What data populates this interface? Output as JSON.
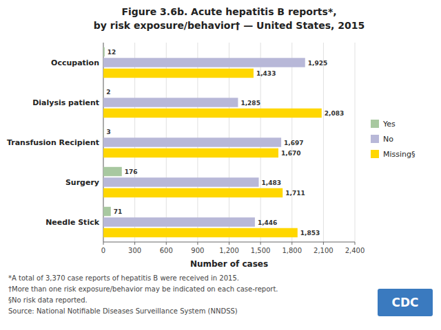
{
  "chart_data": {
    "type": "bar",
    "orientation": "horizontal",
    "title": "Figure 3.6b. Acute hepatitis B reports*,",
    "subtitle": "by risk exposure/behavior† — United States, 2015",
    "categories": [
      "Occupation",
      "Dialysis patient",
      "Transfusion Recipient",
      "Surgery",
      "Needle Stick"
    ],
    "series": [
      {
        "name": "Yes",
        "color": "#a8c8a0",
        "values": [
          12,
          2,
          3,
          176,
          71
        ]
      },
      {
        "name": "No",
        "color": "#b8b8d8",
        "values": [
          1925,
          1285,
          1697,
          1483,
          1446
        ],
        "value_labels": [
          "1,925",
          "1,285",
          "1,697",
          "1,483",
          "1,446"
        ]
      },
      {
        "name": "Missing§",
        "color": "#FFD700",
        "values": [
          1433,
          2083,
          1670,
          1711,
          1853
        ],
        "value_labels": [
          "1,433",
          "2,083",
          "1,670",
          "1,711",
          "1,853"
        ]
      }
    ],
    "xlabel": "Number of cases",
    "xlim": [
      0,
      2400
    ],
    "xticks": [
      0,
      300,
      600,
      900,
      {
        "value": 1200,
        "label": "1,200"
      },
      {
        "value": 1500,
        "label": "1,500"
      },
      {
        "value": 1800,
        "label": "1,800"
      },
      {
        "value": 2100,
        "label": "2,100"
      },
      {
        "value": 2400,
        "label": "2,400"
      }
    ],
    "grid": true,
    "legend": "right",
    "data_labels": true,
    "footnotes": [
      "*A total of 3,370 case reports of hepatitis B were  received in 2015.",
      "†More than one risk exposure/behavior may be indicated on each case-report.",
      "§No risk data reported.",
      "Source:  National Notifiable Diseases Surveillance System (NNDSS)"
    ],
    "annotations": [
      "CDC"
    ]
  }
}
